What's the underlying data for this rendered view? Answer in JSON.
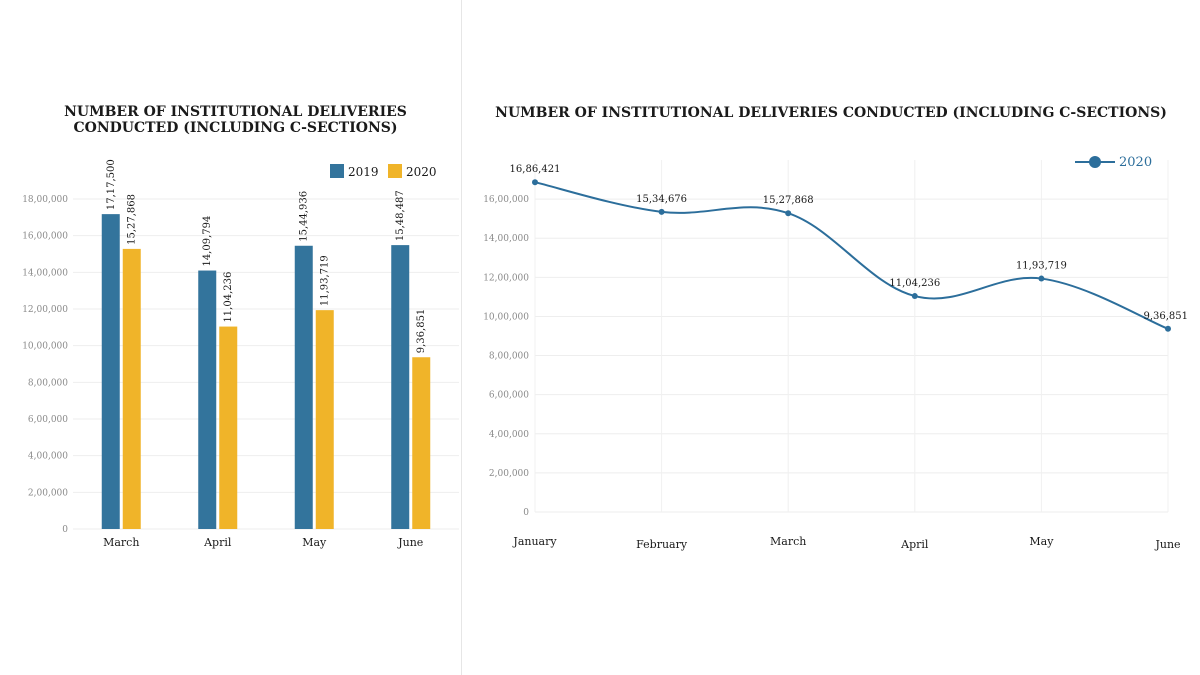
{
  "chart_data": [
    {
      "type": "bar",
      "title": "NUMBER OF INSTITUTIONAL DELIVERIES CONDUCTED (INCLUDING C-SECTIONS)",
      "categories": [
        "March",
        "April",
        "May",
        "June"
      ],
      "series": [
        {
          "name": "2019",
          "color": "#33749c",
          "values": [
            1717500,
            1409794,
            1544936,
            1548487
          ],
          "labels": [
            "17,17,500",
            "14,09,794",
            "15,44,936",
            "15,48,487"
          ]
        },
        {
          "name": "2020",
          "color": "#f0b429",
          "values": [
            1527868,
            1104236,
            1193719,
            936851
          ],
          "labels": [
            "15,27,868",
            "11,04,236",
            "11,93,719",
            "9,36,851"
          ]
        }
      ],
      "ylim": [
        0,
        1800000
      ],
      "yticks": [
        0,
        200000,
        400000,
        600000,
        800000,
        1000000,
        1200000,
        1400000,
        1600000,
        1800000
      ],
      "ytick_labels": [
        "0",
        "2,00,000",
        "4,00,000",
        "6,00,000",
        "8,00,000",
        "10,00,000",
        "12,00,000",
        "14,00,000",
        "16,00,000",
        "18,00,000"
      ],
      "legend_position": "top-right",
      "xlabel": "",
      "ylabel": ""
    },
    {
      "type": "line",
      "title": "NUMBER OF INSTITUTIONAL DELIVERIES CONDUCTED (INCLUDING C-SECTIONS)",
      "categories": [
        "January",
        "February",
        "March",
        "April",
        "May",
        "June"
      ],
      "series": [
        {
          "name": "2020",
          "color": "#2c6e9b",
          "values": [
            1686421,
            1534676,
            1527868,
            1104236,
            1193719,
            936851
          ],
          "labels": [
            "16,86,421",
            "15,34,676",
            "15,27,868",
            "11,04,236",
            "11,93,719",
            "9,36,851"
          ]
        }
      ],
      "ylim": [
        0,
        1800000
      ],
      "yticks": [
        0,
        200000,
        400000,
        600000,
        800000,
        1000000,
        1200000,
        1400000,
        1600000
      ],
      "ytick_labels": [
        "0",
        "2,00,000",
        "4,00,000",
        "6,00,000",
        "8,00,000",
        "10,00,000",
        "12,00,000",
        "14,00,000",
        "16,00,000"
      ],
      "legend_position": "top-right",
      "xlabel": "",
      "ylabel": ""
    }
  ]
}
